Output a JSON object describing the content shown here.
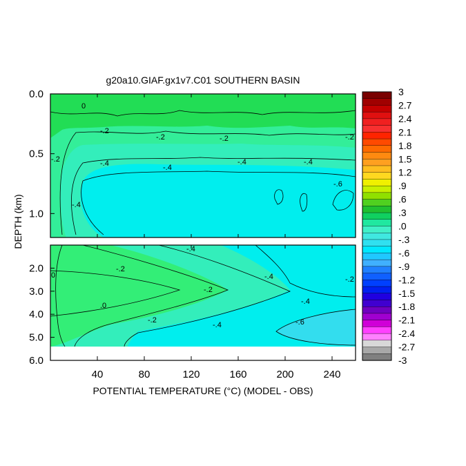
{
  "chart_data": {
    "type": "heatmap",
    "title": "g20a10.GIAF.gx1v7.C01 SOUTHERN BASIN",
    "xlabel": "POTENTIAL TEMPERATURE (°C) (MODEL - OBS)",
    "ylabel": "DEPTH (km)",
    "x_ticks": [
      "40",
      "80",
      "120",
      "160",
      "200",
      "240"
    ],
    "x_tick_values": [
      40,
      80,
      120,
      160,
      200,
      240
    ],
    "xlim": [
      0,
      260
    ],
    "upper_panel": {
      "ylim": [
        0.0,
        1.2
      ],
      "y_ticks": [
        "0.0",
        "0.5",
        "1.0"
      ],
      "y_tick_values": [
        0.0,
        0.5,
        1.0
      ],
      "contour_labels": [
        "0",
        "-.2",
        "-.2",
        "-.2",
        "-.2",
        "-.4",
        "-.4",
        "-.4",
        "-.4",
        "-.4",
        "-.6",
        "-.2"
      ]
    },
    "lower_panel": {
      "ylim": [
        1.0,
        6.0
      ],
      "y_ticks": [
        "2.0",
        "3.0",
        "4.0",
        "5.0",
        "6.0"
      ],
      "y_tick_values": [
        2.0,
        3.0,
        4.0,
        5.0,
        6.0
      ],
      "data_bottom_depth": 5.3,
      "contour_labels": [
        "-.4",
        "-.2",
        "0",
        ".0",
        "-.2",
        "-.2",
        "-.4",
        "-.4",
        "-.4",
        "-.6",
        "-.2"
      ]
    },
    "colorbar": {
      "labels": [
        "3",
        "2.7",
        "2.4",
        "2.1",
        "1.8",
        "1.5",
        "1.2",
        ".9",
        ".6",
        ".3",
        ".0",
        "-.3",
        "-.6",
        "-.9",
        "-1.2",
        "-1.5",
        "-1.8",
        "-2.1",
        "-2.4",
        "-2.7",
        "-3"
      ],
      "levels": [
        3,
        2.7,
        2.4,
        2.1,
        1.8,
        1.5,
        1.2,
        0.9,
        0.6,
        0.3,
        0.0,
        -0.3,
        -0.6,
        -0.9,
        -1.2,
        -1.5,
        -1.8,
        -2.1,
        -2.4,
        -2.7,
        -3
      ],
      "colors": [
        "#7a0000",
        "#a00000",
        "#c40000",
        "#e01010",
        "#f02020",
        "#f83030",
        "#ff2400",
        "#ff4a00",
        "#ff6a00",
        "#ff8a10",
        "#ffa020",
        "#ffbe20",
        "#ffd820",
        "#f0f000",
        "#c8f000",
        "#90e000",
        "#50d020",
        "#20c030",
        "#10d060",
        "#20e8a0",
        "#40f0c8",
        "#40e8e0",
        "#30e0f0",
        "#00e8ff",
        "#20c8ff",
        "#40b0ff",
        "#2080ff",
        "#1060ff",
        "#0040ff",
        "#0020f0",
        "#2000e0",
        "#4000d0",
        "#7000c0",
        "#a000d0",
        "#d000d8",
        "#ff40ff",
        "#ff80ff",
        "#d8d8d8",
        "#a8a8a8",
        "#808080"
      ]
    },
    "fills": {
      "green": "#22dd55",
      "green_light": "#33ee77",
      "aqua_green": "#33ee99",
      "teal": "#33eebb",
      "cyan": "#00eeee",
      "cyan_dark": "#33ddee"
    }
  }
}
